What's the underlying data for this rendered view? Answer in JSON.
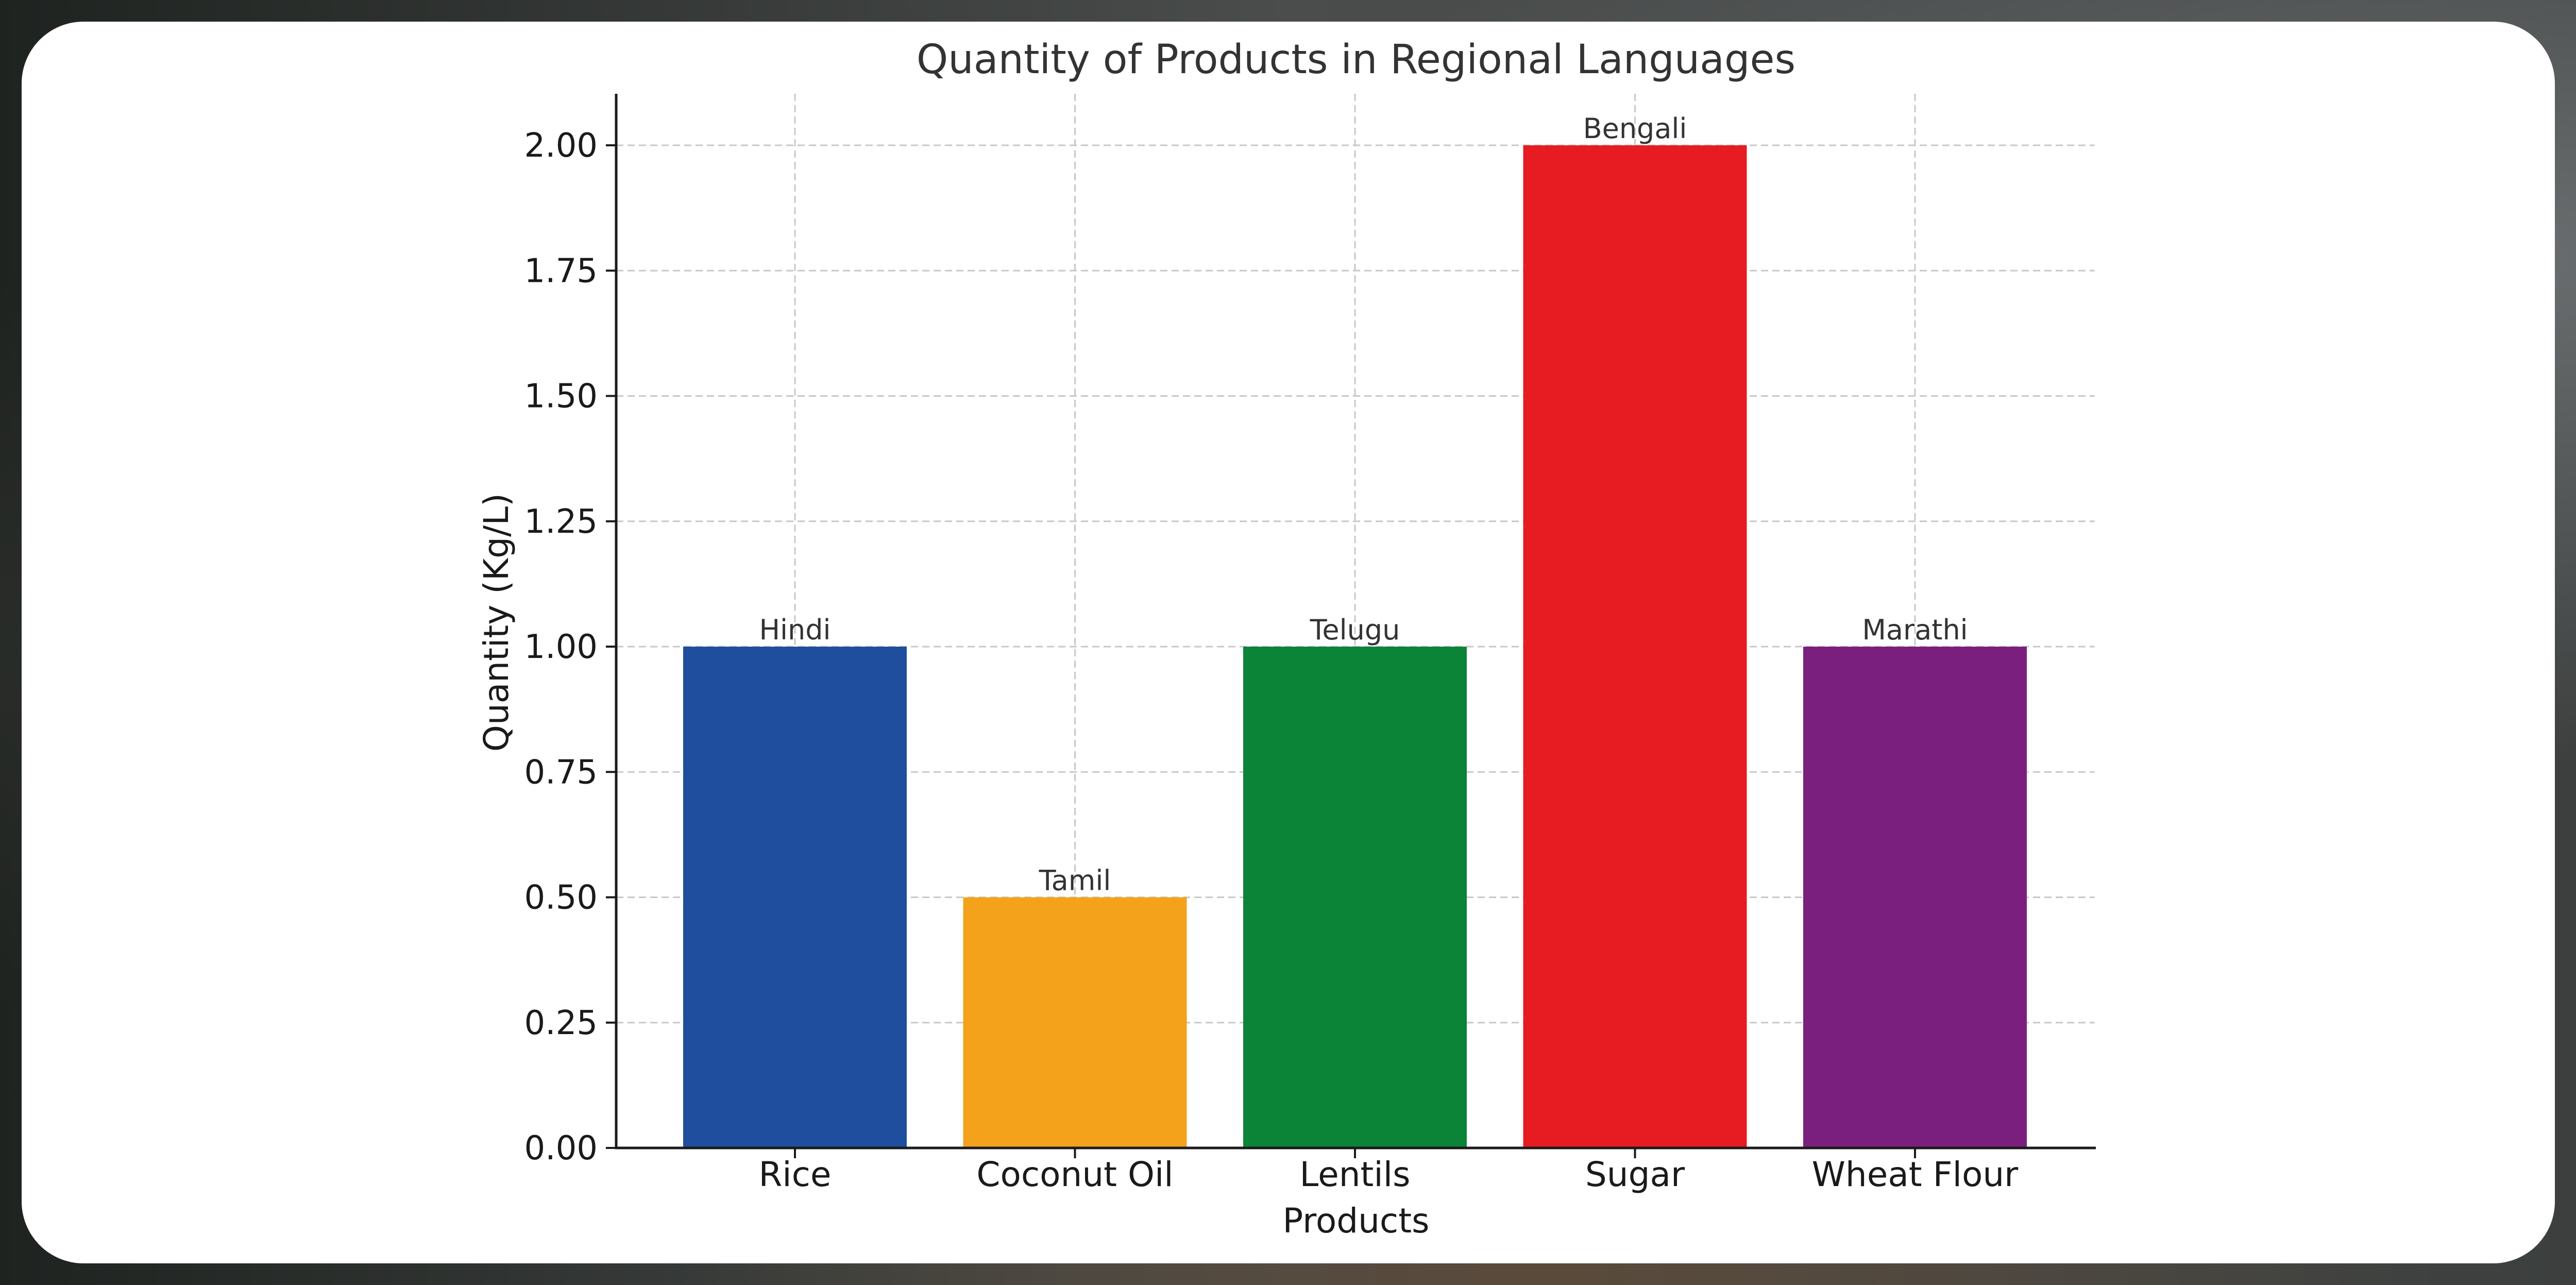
{
  "chart_data": {
    "type": "bar",
    "title": "Quantity of Products in Regional Languages",
    "xlabel": "Products",
    "ylabel": "Quantity (Kg/L)",
    "categories": [
      "Rice",
      "Coconut Oil",
      "Lentils",
      "Sugar",
      "Wheat Flour"
    ],
    "values": [
      1.0,
      0.5,
      1.0,
      2.0,
      1.0
    ],
    "bar_labels": [
      "Hindi",
      "Tamil",
      "Telugu",
      "Bengali",
      "Marathi"
    ],
    "colors": [
      "#1f4e9e",
      "#f4a21c",
      "#0b8438",
      "#e61c22",
      "#7b1f7f"
    ],
    "ylim": [
      0,
      2.1
    ],
    "yticks": [
      "0.00",
      "0.25",
      "0.50",
      "0.75",
      "1.00",
      "1.25",
      "1.50",
      "1.75",
      "2.00"
    ],
    "grid": true,
    "legend": "none"
  }
}
